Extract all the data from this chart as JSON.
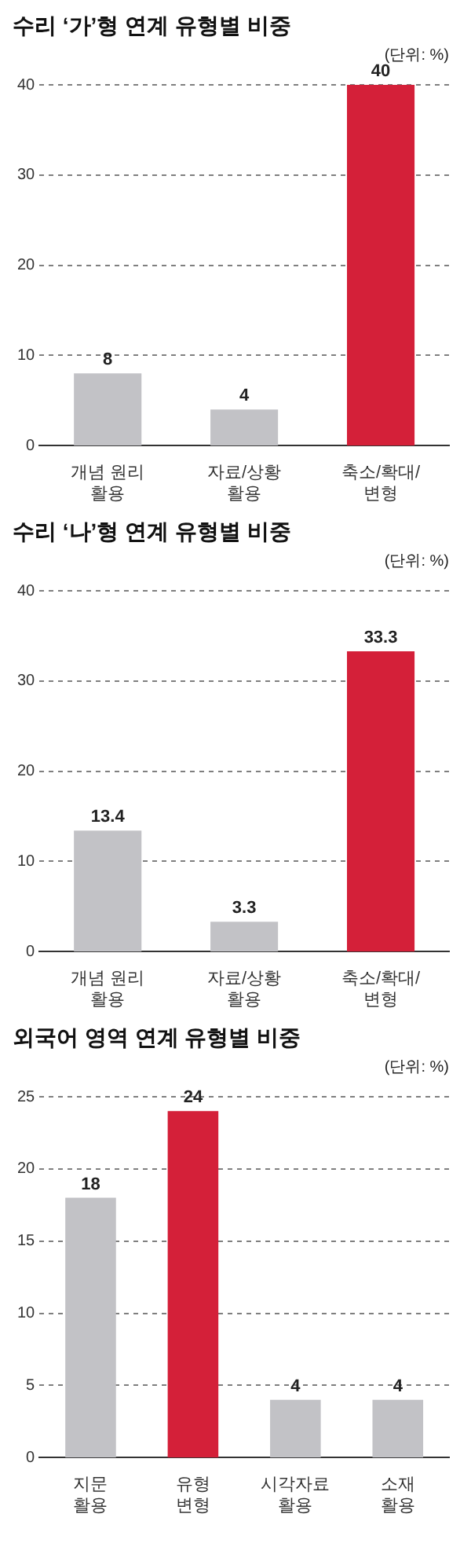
{
  "chart_data": [
    {
      "type": "bar",
      "title": "수리 ‘가’형 연계 유형별 비중",
      "annotations": [
        "(단위: %)"
      ],
      "categories": [
        "개념 원리\n활용",
        "자료/상황\n활용",
        "축소/확대/\n변형"
      ],
      "values": [
        8,
        4,
        40
      ],
      "colors": [
        "#c2c2c6",
        "#c2c2c6",
        "#d42039"
      ],
      "ylim": [
        0,
        40
      ],
      "yticks": [
        0,
        10,
        20,
        30,
        40
      ],
      "grid": "y",
      "data_labels": true
    },
    {
      "type": "bar",
      "title": "수리 ‘나’형 연계 유형별 비중",
      "annotations": [
        "(단위: %)"
      ],
      "categories": [
        "개념 원리\n활용",
        "자료/상황\n활용",
        "축소/확대/\n변형"
      ],
      "values": [
        13.4,
        3.3,
        33.3
      ],
      "colors": [
        "#c2c2c6",
        "#c2c2c6",
        "#d42039"
      ],
      "ylim": [
        0,
        40
      ],
      "yticks": [
        0,
        10,
        20,
        30,
        40
      ],
      "grid": "y",
      "data_labels": true
    },
    {
      "type": "bar",
      "title": "외국어 영역 연계 유형별 비중",
      "annotations": [
        "(단위: %)"
      ],
      "categories": [
        "지문\n활용",
        "유형\n변형",
        "시각자료\n활용",
        "소재\n활용"
      ],
      "values": [
        18,
        24,
        4,
        4
      ],
      "colors": [
        "#c2c2c6",
        "#d42039",
        "#c2c2c6",
        "#c2c2c6"
      ],
      "ylim": [
        0,
        25
      ],
      "yticks": [
        0,
        5,
        10,
        15,
        20,
        25
      ],
      "grid": "y",
      "data_labels": true
    }
  ]
}
